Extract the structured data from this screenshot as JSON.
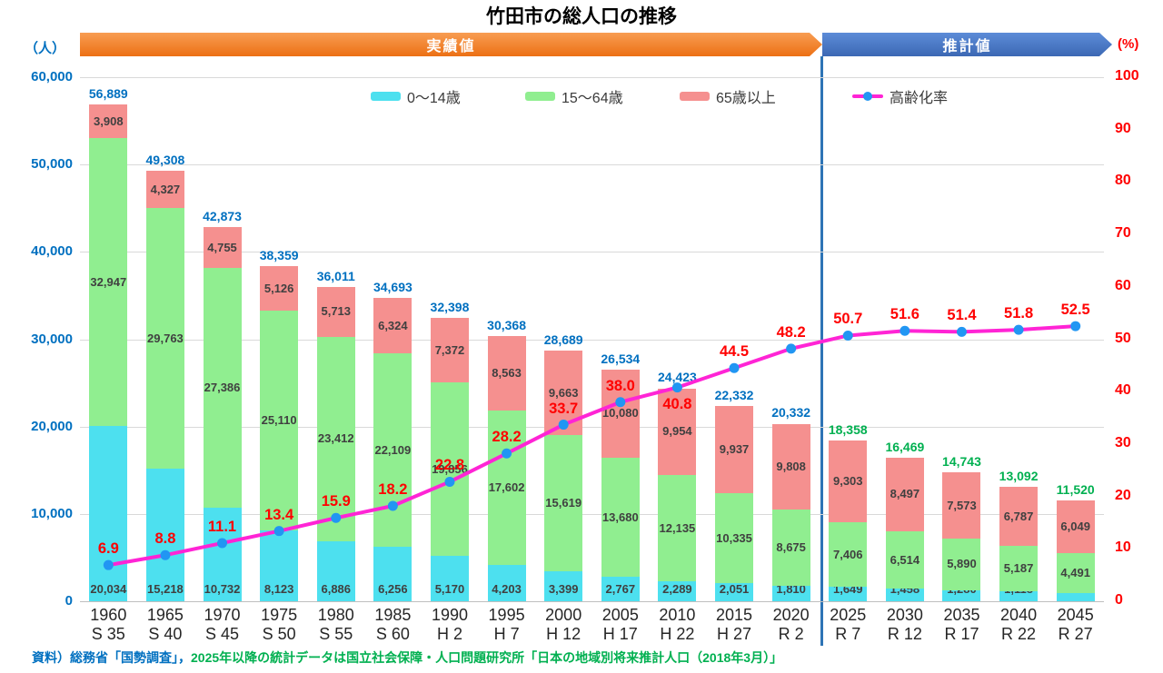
{
  "title": "竹田市の総人口の推移",
  "banners": {
    "actual": "実績値",
    "projection": "推計値"
  },
  "axes": {
    "left_unit": "（人）",
    "right_unit": "(%)"
  },
  "source_note": {
    "part1": "資料）総務省「国勢調査」，",
    "part2": "2025年以降の統計データは国立社会保障・人口問題研究所「日本の地域別将来推計人口（2018年3月）」"
  },
  "colors": {
    "total_actual": "#0070C0",
    "total_projection": "#00B050",
    "rate_label": "#FF0000",
    "axis_left": "#0070C0",
    "axis_right": "#FF0000",
    "divider": "#2E74B5",
    "banner_actual": "#ED7D31",
    "banner_projection": "#4472C4",
    "line": "#FF24D5",
    "dot": "#2196F3"
  },
  "chart_data": {
    "type": "stacked-bar+line",
    "title": "竹田市の総人口の推移",
    "ylabel_left": "（人）",
    "ylabel_right": "(%)",
    "ylim_left": [
      0,
      60000
    ],
    "ylim_right": [
      0,
      100
    ],
    "left_ticks": [
      "60,000",
      "50,000",
      "40,000",
      "30,000",
      "20,000",
      "10,000",
      "0"
    ],
    "right_ticks": [
      "100",
      "90",
      "80",
      "70",
      "60",
      "50",
      "40",
      "30",
      "20",
      "10",
      "0"
    ],
    "grid": true,
    "legend_position": "top-inside",
    "projection_start_index": 13,
    "categories": [
      {
        "year": "1960",
        "era": "S 35"
      },
      {
        "year": "1965",
        "era": "S 40"
      },
      {
        "year": "1970",
        "era": "S 45"
      },
      {
        "year": "1975",
        "era": "S 50"
      },
      {
        "year": "1980",
        "era": "S 55"
      },
      {
        "year": "1985",
        "era": "S 60"
      },
      {
        "year": "1990",
        "era": "H 2"
      },
      {
        "year": "1995",
        "era": "H 7"
      },
      {
        "year": "2000",
        "era": "H 12"
      },
      {
        "year": "2005",
        "era": "H 17"
      },
      {
        "year": "2010",
        "era": "H 22"
      },
      {
        "year": "2015",
        "era": "H 27"
      },
      {
        "year": "2020",
        "era": "R 2"
      },
      {
        "year": "2025",
        "era": "R 7"
      },
      {
        "year": "2030",
        "era": "R 12"
      },
      {
        "year": "2035",
        "era": "R 17"
      },
      {
        "year": "2040",
        "era": "R 22"
      },
      {
        "year": "2045",
        "era": "R 27"
      }
    ],
    "series": [
      {
        "name": "0～14歳",
        "color": "#4de0ef",
        "values": [
          20034,
          15218,
          10732,
          8123,
          6886,
          6256,
          5170,
          4203,
          3399,
          2767,
          2289,
          2051,
          1810,
          1649,
          1458,
          1280,
          1118,
          980
        ]
      },
      {
        "name": "15～64歳",
        "color": "#90ee90",
        "values": [
          32947,
          29763,
          27386,
          25110,
          23412,
          22109,
          19856,
          17602,
          15619,
          13680,
          12135,
          10335,
          8675,
          7406,
          6514,
          5890,
          5187,
          4491
        ]
      },
      {
        "name": "65歳以上",
        "color": "#f5908f",
        "values": [
          3908,
          4327,
          4755,
          5126,
          5713,
          6324,
          7372,
          8563,
          9663,
          10080,
          9954,
          9937,
          9808,
          9303,
          8497,
          7573,
          6787,
          6049
        ]
      }
    ],
    "totals": [
      56889,
      49308,
      42873,
      38359,
      36011,
      34693,
      32398,
      30368,
      28689,
      26534,
      24423,
      22332,
      20332,
      18358,
      16469,
      14743,
      13092,
      11520
    ],
    "line": {
      "name": "高齢化率",
      "color": "#ff24d5",
      "values": [
        6.9,
        8.8,
        11.1,
        13.4,
        15.9,
        18.2,
        22.8,
        28.2,
        33.7,
        38.0,
        40.8,
        44.5,
        48.2,
        50.7,
        51.6,
        51.4,
        51.8,
        52.5
      ]
    }
  }
}
